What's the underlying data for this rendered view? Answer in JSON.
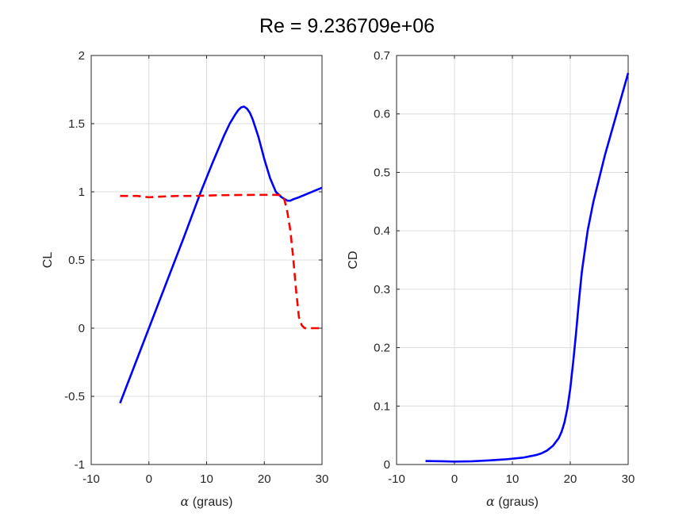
{
  "figure": {
    "title": "Re = 9.236709e+06",
    "background": "#ffffff"
  },
  "chart_data": [
    {
      "type": "line",
      "title": "",
      "xlabel": "α (graus)",
      "ylabel": "CL",
      "xlim": [
        -10,
        30
      ],
      "ylim": [
        -1,
        2
      ],
      "xticks": [
        "-10",
        "0",
        "10",
        "20",
        "30"
      ],
      "yticks": [
        "-1",
        "-0.5",
        "0",
        "0.5",
        "1",
        "1.5",
        "2"
      ],
      "grid": true,
      "legend": "none",
      "series": [
        {
          "color": "#0000ff",
          "style": "solid",
          "x": [
            -5,
            -3,
            0,
            3,
            6,
            9,
            11,
            13,
            14,
            15,
            15.5,
            16,
            16.5,
            17,
            17.5,
            18,
            19,
            20,
            21,
            22,
            23,
            24,
            24.5,
            25,
            26,
            28,
            30
          ],
          "y": [
            -0.55,
            -0.33,
            0.0,
            0.33,
            0.66,
            1.0,
            1.21,
            1.41,
            1.5,
            1.57,
            1.6,
            1.62,
            1.625,
            1.61,
            1.58,
            1.53,
            1.4,
            1.24,
            1.1,
            1.0,
            0.96,
            0.935,
            0.935,
            0.945,
            0.96,
            0.995,
            1.03
          ]
        },
        {
          "color": "#ff0000",
          "style": "dashed",
          "x": [
            -5,
            -2,
            0,
            2,
            5,
            8,
            12,
            16,
            20,
            22,
            23,
            23.5,
            24,
            24.5,
            25,
            25.5,
            26,
            26.5,
            27,
            28,
            30
          ],
          "y": [
            0.97,
            0.97,
            0.96,
            0.965,
            0.97,
            0.97,
            0.975,
            0.977,
            0.978,
            0.978,
            0.975,
            0.94,
            0.85,
            0.72,
            0.52,
            0.28,
            0.08,
            0.02,
            0.0,
            0.0,
            0.0
          ]
        }
      ]
    },
    {
      "type": "line",
      "title": "",
      "xlabel": "α (graus)",
      "ylabel": "CD",
      "xlim": [
        -10,
        30
      ],
      "ylim": [
        0,
        0.7
      ],
      "xticks": [
        "-10",
        "0",
        "10",
        "20",
        "30"
      ],
      "yticks": [
        "0",
        "0.1",
        "0.2",
        "0.3",
        "0.4",
        "0.5",
        "0.6",
        "0.7"
      ],
      "grid": true,
      "legend": "none",
      "series": [
        {
          "color": "#0000ff",
          "style": "solid",
          "x": [
            -5,
            -2,
            0,
            3,
            6,
            9,
            12,
            14,
            15,
            16,
            17,
            18,
            18.5,
            19,
            19.5,
            20,
            20.5,
            21,
            21.5,
            22,
            23,
            24,
            25,
            26,
            28,
            30
          ],
          "y": [
            0.006,
            0.0055,
            0.005,
            0.0055,
            0.007,
            0.009,
            0.012,
            0.016,
            0.019,
            0.024,
            0.032,
            0.045,
            0.056,
            0.072,
            0.096,
            0.13,
            0.175,
            0.225,
            0.28,
            0.33,
            0.4,
            0.45,
            0.49,
            0.53,
            0.6,
            0.67
          ]
        }
      ]
    }
  ]
}
